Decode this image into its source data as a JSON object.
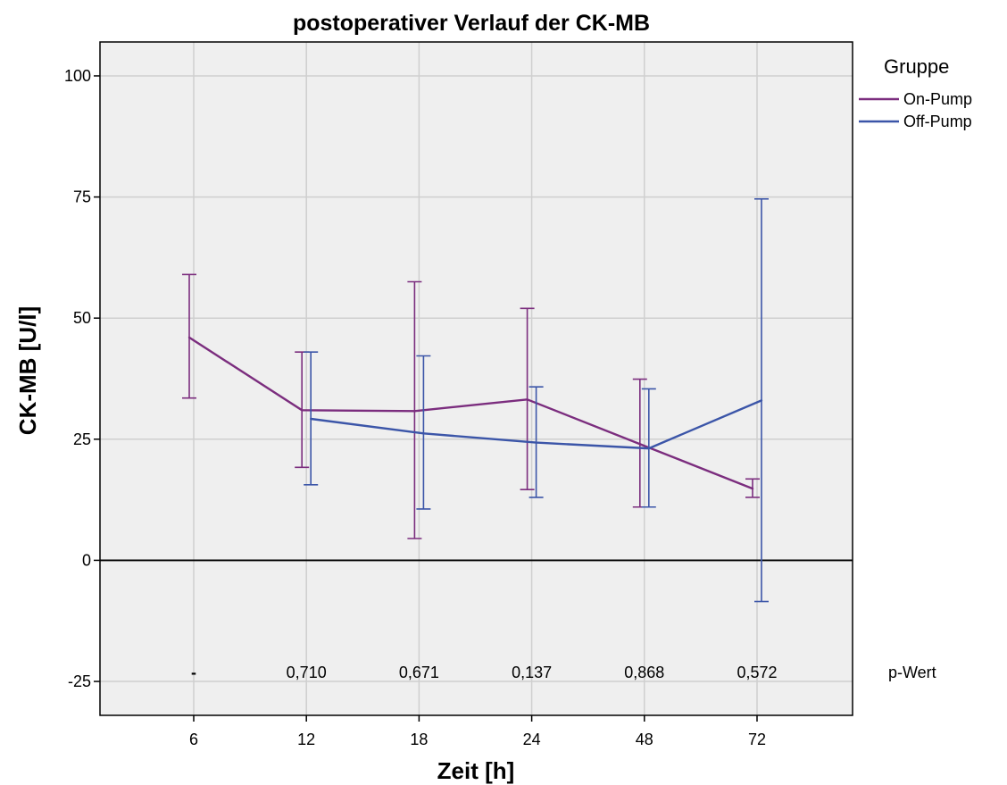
{
  "chart_data": {
    "type": "line",
    "title": "postoperativer Verlauf der CK-MB",
    "xlabel": "Zeit [h]",
    "ylabel": "CK-MB [U/l]",
    "categories": [
      "6",
      "12",
      "18",
      "24",
      "48",
      "72"
    ],
    "ylim": [
      -32,
      107
    ],
    "yticks": [
      -25,
      0,
      25,
      50,
      75,
      100
    ],
    "ytick_labels": [
      "-25",
      "0",
      "25",
      "50",
      "75",
      "100"
    ],
    "grid": true,
    "zero_line": true,
    "legend": {
      "title": "Gruppe",
      "position": "top-right-outside"
    },
    "series": [
      {
        "name": "On-Pump",
        "color": "#7b2d7e",
        "values": [
          46,
          31,
          30.8,
          33.2,
          24,
          14.8
        ],
        "lower": [
          33.5,
          19.2,
          4.5,
          14.6,
          11,
          13
        ],
        "upper": [
          59,
          43,
          57.5,
          52,
          37.4,
          16.8
        ]
      },
      {
        "name": "Off-Pump",
        "color": "#3b55a8",
        "values": [
          null,
          29.2,
          26.2,
          24.3,
          23.1,
          33
        ],
        "lower": [
          null,
          15.6,
          10.6,
          13,
          11,
          -8.5
        ],
        "upper": [
          null,
          43,
          42.2,
          35.8,
          35.4,
          74.6
        ]
      }
    ],
    "p_values": {
      "label": "p-Wert",
      "values": [
        "-",
        "0,710",
        "0,671",
        "0,137",
        "0,868",
        "0,572"
      ]
    }
  }
}
